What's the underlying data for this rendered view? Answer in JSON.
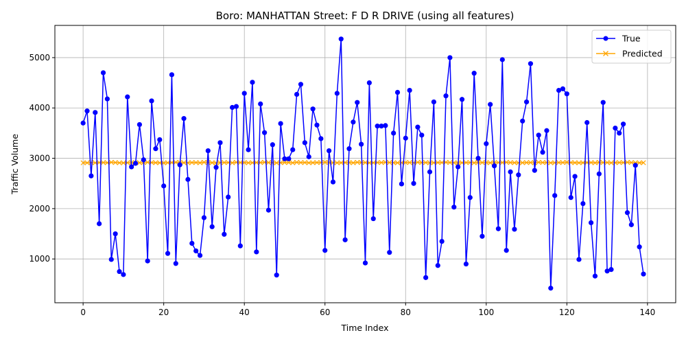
{
  "chart_data": {
    "type": "line",
    "title": "Boro: MANHATTAN Street: F D R DRIVE (using all features)",
    "xlabel": "Time Index",
    "ylabel": "Traffic Volume",
    "xlim": [
      -7,
      147
    ],
    "ylim": [
      130,
      5640
    ],
    "xticks": [
      0,
      20,
      40,
      60,
      80,
      100,
      120,
      140
    ],
    "yticks": [
      1000,
      2000,
      3000,
      4000,
      5000
    ],
    "grid": true,
    "legend_position": "top-right",
    "series": [
      {
        "name": "True",
        "color": "#0000ff",
        "marker": "circle",
        "values": [
          3700,
          3940,
          2650,
          3910,
          1700,
          4700,
          4180,
          990,
          1500,
          750,
          690,
          4220,
          2830,
          2900,
          3670,
          2970,
          960,
          4140,
          3190,
          3370,
          2450,
          1110,
          4660,
          910,
          2870,
          3790,
          2580,
          1310,
          1160,
          1070,
          1820,
          3150,
          1640,
          2820,
          3310,
          1490,
          2230,
          4010,
          4030,
          1260,
          4290,
          3170,
          4510,
          1140,
          4080,
          3510,
          1970,
          3270,
          680,
          3690,
          2990,
          2990,
          3170,
          4270,
          4470,
          3310,
          3030,
          3980,
          3660,
          3390,
          1170,
          3150,
          2530,
          4290,
          5370,
          1380,
          3190,
          3720,
          4110,
          3280,
          920,
          4500,
          1800,
          3640,
          3640,
          3650,
          1130,
          3500,
          4310,
          2490,
          3400,
          4350,
          2500,
          3620,
          3460,
          630,
          2730,
          4120,
          870,
          1350,
          4240,
          5000,
          2030,
          2830,
          4170,
          900,
          2220,
          4690,
          3000,
          1450,
          3290,
          4070,
          2850,
          1600,
          4960,
          1170,
          2730,
          1590,
          2670,
          3740,
          4120,
          4880,
          2760,
          3460,
          3120,
          3550,
          420,
          2260,
          4350,
          4380,
          4280,
          2220,
          2640,
          990,
          2100,
          3710,
          1720,
          660,
          2690,
          4110,
          760,
          790,
          3600,
          3500,
          3680,
          1920,
          1680,
          2860,
          1240,
          700
        ]
      },
      {
        "name": "Predicted",
        "color": "#ffa500",
        "marker": "x",
        "values": [
          2910,
          2910,
          2915,
          2910,
          2915,
          2915,
          2912,
          2920,
          2915,
          2910,
          2908,
          2912,
          2915,
          2910,
          2912,
          2915,
          2920,
          2915,
          2912,
          2910,
          2908,
          2912,
          2915,
          2920,
          2915,
          2912,
          2910,
          2915,
          2915,
          2910,
          2920,
          2915,
          2912,
          2908,
          2912,
          2915,
          2915,
          2910,
          2920,
          2915,
          2915,
          2910,
          2912,
          2915,
          2915,
          2920,
          2915,
          2912,
          2908,
          2912,
          2915,
          2915,
          2910,
          2920,
          2915,
          2915,
          2910,
          2912,
          2915,
          2915,
          2920,
          2915,
          2912,
          2910,
          2912,
          2915,
          2915,
          2910,
          2920,
          2915,
          2915,
          2910,
          2912,
          2915,
          2915,
          2920,
          2915,
          2912,
          2910,
          2912,
          2915,
          2915,
          2910,
          2920,
          2915,
          2915,
          2910,
          2912,
          2915,
          2915,
          2920,
          2915,
          2912,
          2910,
          2912,
          2915,
          2915,
          2910,
          2920,
          2915,
          2915,
          2910,
          2912,
          2915,
          2915,
          2920,
          2915,
          2912,
          2910,
          2912,
          2915,
          2915,
          2910,
          2920,
          2915,
          2915,
          2910,
          2912,
          2915,
          2915,
          2920,
          2915,
          2912,
          2910,
          2912,
          2915,
          2915,
          2910,
          2920,
          2915,
          2915,
          2910,
          2912,
          2915,
          2915,
          2920,
          2915,
          2912,
          2910,
          2912
        ]
      }
    ]
  }
}
